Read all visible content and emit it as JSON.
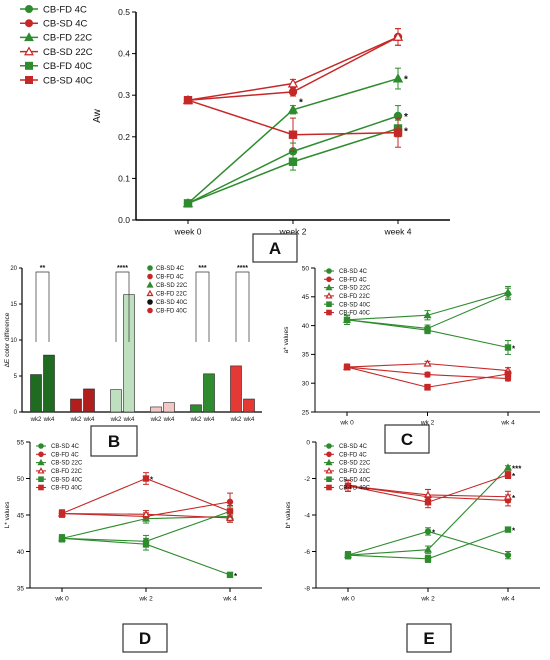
{
  "chart_data": [
    {
      "panel": "A",
      "type": "line",
      "title": "",
      "xlabel": "",
      "ylabel": "Aw",
      "categories": [
        "week 0",
        "week 2",
        "week 4"
      ],
      "ylim": [
        0,
        0.5
      ],
      "yticks": [
        "0.0",
        "0.1",
        "0.2",
        "0.3",
        "0.4",
        "0.5"
      ],
      "legend": "top-left",
      "grid": false,
      "series": [
        {
          "name": "CB-FD 4C",
          "color": "#2e8b2e",
          "marker": "circle",
          "filled": true,
          "values": [
            0.04,
            0.165,
            0.25
          ],
          "err": [
            0.0,
            0.02,
            0.025
          ]
        },
        {
          "name": "CB-SD 4C",
          "color": "#c62828",
          "marker": "circle",
          "filled": true,
          "values": [
            0.288,
            0.308,
            0.44
          ],
          "err": [
            0.0,
            0.01,
            0.02
          ]
        },
        {
          "name": "CB-FD 22C",
          "color": "#2e8b2e",
          "marker": "triangle",
          "filled": true,
          "values": [
            0.04,
            0.265,
            0.34
          ],
          "err": [
            0.0,
            0.01,
            0.025
          ]
        },
        {
          "name": "CB-SD 22C",
          "color": "#c62828",
          "marker": "triangle",
          "filled": false,
          "values": [
            0.288,
            0.328,
            0.44
          ],
          "err": [
            0.0,
            0.01,
            0.02
          ]
        },
        {
          "name": "CB-FD 40C",
          "color": "#2e8b2e",
          "marker": "square",
          "filled": true,
          "values": [
            0.04,
            0.14,
            0.22
          ],
          "err": [
            0.0,
            0.02,
            0.02
          ]
        },
        {
          "name": "CB-SD 40C",
          "color": "#c62828",
          "marker": "square",
          "filled": true,
          "values": [
            0.288,
            0.205,
            0.21
          ],
          "err": [
            0.0,
            0.04,
            0.035
          ]
        }
      ],
      "annotations": [
        {
          "text": "*",
          "x": "week 2",
          "y": 0.285
        },
        {
          "text": "*",
          "x": "week 4",
          "y": 0.34
        },
        {
          "text": "*",
          "x": "week 4",
          "y": 0.25
        },
        {
          "text": "*",
          "x": "week 4",
          "y": 0.215
        }
      ],
      "label": "A"
    },
    {
      "panel": "B",
      "type": "bar",
      "title": "",
      "xlabel": "",
      "ylabel": "ΔE color difference",
      "ylim": [
        0,
        20
      ],
      "yticks": [
        "0",
        "5",
        "10",
        "15",
        "20"
      ],
      "legend": "top-right",
      "grid": false,
      "legend_entries": [
        {
          "name": "CB-SD 4C",
          "color": "#2e8b2e",
          "marker": "circle",
          "filled": true
        },
        {
          "name": "CB-FD 4C",
          "color": "#c62828",
          "marker": "circle",
          "filled": true
        },
        {
          "name": "CB-SD 22C",
          "color": "#2e8b2e",
          "marker": "triangle",
          "filled": true
        },
        {
          "name": "CB-FD 22C",
          "color": "#c62828",
          "marker": "triangle",
          "filled": false
        },
        {
          "name": "CB-SD 40C",
          "color": "#111111",
          "marker": "circle",
          "filled": true
        },
        {
          "name": "CB-FD 40C",
          "color": "#c62828",
          "marker": "circle",
          "filled": true
        }
      ],
      "categories": [
        "wk2",
        "wk4",
        "wk2",
        "wk4",
        "wk2",
        "wk4",
        "wk2",
        "wk4",
        "wk2",
        "wk4",
        "wk2",
        "wk4"
      ],
      "values": [
        5.2,
        7.9,
        1.8,
        3.2,
        3.1,
        16.3,
        0.7,
        1.3,
        1.0,
        5.3,
        6.4,
        1.8
      ],
      "bar_colors": [
        "#1f6b1f",
        "#1f6b1f",
        "#b01e1e",
        "#b01e1e",
        "#bfe0bf",
        "#bfe0bf",
        "#f4c7c7",
        "#f4c7c7",
        "#2e8b2e",
        "#2e8b2e",
        "#e53935",
        "#e53935"
      ],
      "significance": [
        {
          "text": "**",
          "from": 0,
          "to": 1
        },
        {
          "text": "****",
          "from": 4,
          "to": 5
        },
        {
          "text": "***",
          "from": 8,
          "to": 9
        },
        {
          "text": "****",
          "from": 10,
          "to": 11
        }
      ],
      "label": "B"
    },
    {
      "panel": "C",
      "type": "line",
      "title": "",
      "xlabel": "",
      "ylabel": "a* values",
      "categories": [
        "wk 0",
        "wk 2",
        "wk 4"
      ],
      "ylim": [
        25,
        50
      ],
      "yticks": [
        "25",
        "30",
        "35",
        "40",
        "45",
        "50"
      ],
      "legend": "top-left",
      "grid": false,
      "series": [
        {
          "name": "CB-SD 4C",
          "color": "#2e8b2e",
          "marker": "circle",
          "filled": true,
          "values": [
            41,
            39.5,
            45.5
          ],
          "err": [
            0.8,
            0.6,
            1.0
          ]
        },
        {
          "name": "CB-FD 4C",
          "color": "#c62828",
          "marker": "circle",
          "filled": true,
          "values": [
            32.8,
            31.5,
            30.8
          ],
          "err": [
            0.5,
            0.4,
            0.4
          ]
        },
        {
          "name": "CB-SD 22C",
          "color": "#2e8b2e",
          "marker": "triangle",
          "filled": true,
          "values": [
            41,
            41.8,
            45.8
          ],
          "err": [
            0.8,
            0.8,
            1.0
          ]
        },
        {
          "name": "CB-FD 22C",
          "color": "#c62828",
          "marker": "triangle",
          "filled": false,
          "values": [
            32.8,
            33.4,
            32.2
          ],
          "err": [
            0.5,
            0.4,
            0.5
          ]
        },
        {
          "name": "CB-SD 40C",
          "color": "#2e8b2e",
          "marker": "square",
          "filled": true,
          "values": [
            41,
            39.2,
            36.2
          ],
          "err": [
            0.8,
            0.6,
            1.2
          ]
        },
        {
          "name": "CB-FD 40C",
          "color": "#c62828",
          "marker": "square",
          "filled": true,
          "values": [
            32.8,
            29.3,
            31.6
          ],
          "err": [
            0.5,
            0.5,
            0.5
          ]
        }
      ],
      "annotations": [
        {
          "text": "*",
          "x": "wk 4",
          "y": 36.2
        }
      ],
      "label": "C"
    },
    {
      "panel": "D",
      "type": "line",
      "title": "",
      "xlabel": "",
      "ylabel": "L* values",
      "categories": [
        "wk 0",
        "wk 2",
        "wk 4"
      ],
      "ylim": [
        35,
        55
      ],
      "yticks": [
        "35",
        "40",
        "45",
        "50",
        "55"
      ],
      "legend": "top-left",
      "grid": false,
      "series": [
        {
          "name": "CB-SD 4C",
          "color": "#2e8b2e",
          "marker": "circle",
          "filled": true,
          "values": [
            41.8,
            41.4,
            45.5
          ],
          "err": [
            0.5,
            0.8,
            0.6
          ]
        },
        {
          "name": "CB-FD 4C",
          "color": "#c62828",
          "marker": "circle",
          "filled": true,
          "values": [
            45.2,
            44.8,
            46.8
          ],
          "err": [
            0.5,
            0.5,
            1.2
          ]
        },
        {
          "name": "CB-SD 22C",
          "color": "#2e8b2e",
          "marker": "triangle",
          "filled": true,
          "values": [
            41.8,
            44.5,
            44.8
          ],
          "err": [
            0.5,
            0.6,
            0.6
          ]
        },
        {
          "name": "CB-FD 22C",
          "color": "#c62828",
          "marker": "triangle",
          "filled": false,
          "values": [
            45.2,
            45.1,
            44.6
          ],
          "err": [
            0.5,
            0.5,
            0.6
          ]
        },
        {
          "name": "CB-SD 40C",
          "color": "#2e8b2e",
          "marker": "square",
          "filled": true,
          "values": [
            41.8,
            41.0,
            36.8
          ],
          "err": [
            0.5,
            0.8,
            0.3
          ]
        },
        {
          "name": "CB-FD 40C",
          "color": "#c62828",
          "marker": "square",
          "filled": true,
          "values": [
            45.2,
            50.0,
            45.5
          ],
          "err": [
            0.5,
            0.8,
            0.8
          ]
        }
      ],
      "annotations": [
        {
          "text": "*",
          "x": "wk 2",
          "y": 50.0
        },
        {
          "text": "*",
          "x": "wk 4",
          "y": 36.8
        }
      ],
      "label": "D"
    },
    {
      "panel": "E",
      "type": "line",
      "title": "",
      "xlabel": "",
      "ylabel": "b* values",
      "categories": [
        "wk 0",
        "wk 2",
        "wk 4"
      ],
      "ylim": [
        -8,
        0
      ],
      "yticks": [
        "-8",
        "-6",
        "-4",
        "-2",
        "0"
      ],
      "legend": "top-left",
      "grid": false,
      "series": [
        {
          "name": "CB-SD 4C",
          "color": "#2e8b2e",
          "marker": "circle",
          "filled": true,
          "values": [
            -6.2,
            -4.9,
            -6.2
          ],
          "err": [
            0.2,
            0.2,
            0.2
          ]
        },
        {
          "name": "CB-FD 4C",
          "color": "#c62828",
          "marker": "circle",
          "filled": true,
          "values": [
            -2.4,
            -3.0,
            -3.2
          ],
          "err": [
            0.3,
            0.4,
            0.3
          ]
        },
        {
          "name": "CB-SD 22C",
          "color": "#2e8b2e",
          "marker": "triangle",
          "filled": true,
          "values": [
            -6.2,
            -5.9,
            -1.4
          ],
          "err": [
            0.2,
            0.2,
            0.1
          ]
        },
        {
          "name": "CB-FD 22C",
          "color": "#c62828",
          "marker": "triangle",
          "filled": false,
          "values": [
            -2.4,
            -2.9,
            -3.0
          ],
          "err": [
            0.3,
            0.3,
            0.3
          ]
        },
        {
          "name": "CB-SD 40C",
          "color": "#2e8b2e",
          "marker": "square",
          "filled": true,
          "values": [
            -6.2,
            -6.4,
            -4.8
          ],
          "err": [
            0.2,
            0.2,
            0.1
          ]
        },
        {
          "name": "CB-FD 40C",
          "color": "#c62828",
          "marker": "square",
          "filled": true,
          "values": [
            -2.4,
            -3.3,
            -1.8
          ],
          "err": [
            0.3,
            0.3,
            0.2
          ]
        }
      ],
      "annotations": [
        {
          "text": "***",
          "x": "wk 4",
          "y": -1.4
        },
        {
          "text": "*",
          "x": "wk 4",
          "y": -1.8
        },
        {
          "text": "*",
          "x": "wk 4",
          "y": -3.0
        },
        {
          "text": "*",
          "x": "wk 4",
          "y": -4.8
        },
        {
          "text": "*",
          "x": "wk 2",
          "y": -4.9
        }
      ],
      "label": "E"
    }
  ]
}
